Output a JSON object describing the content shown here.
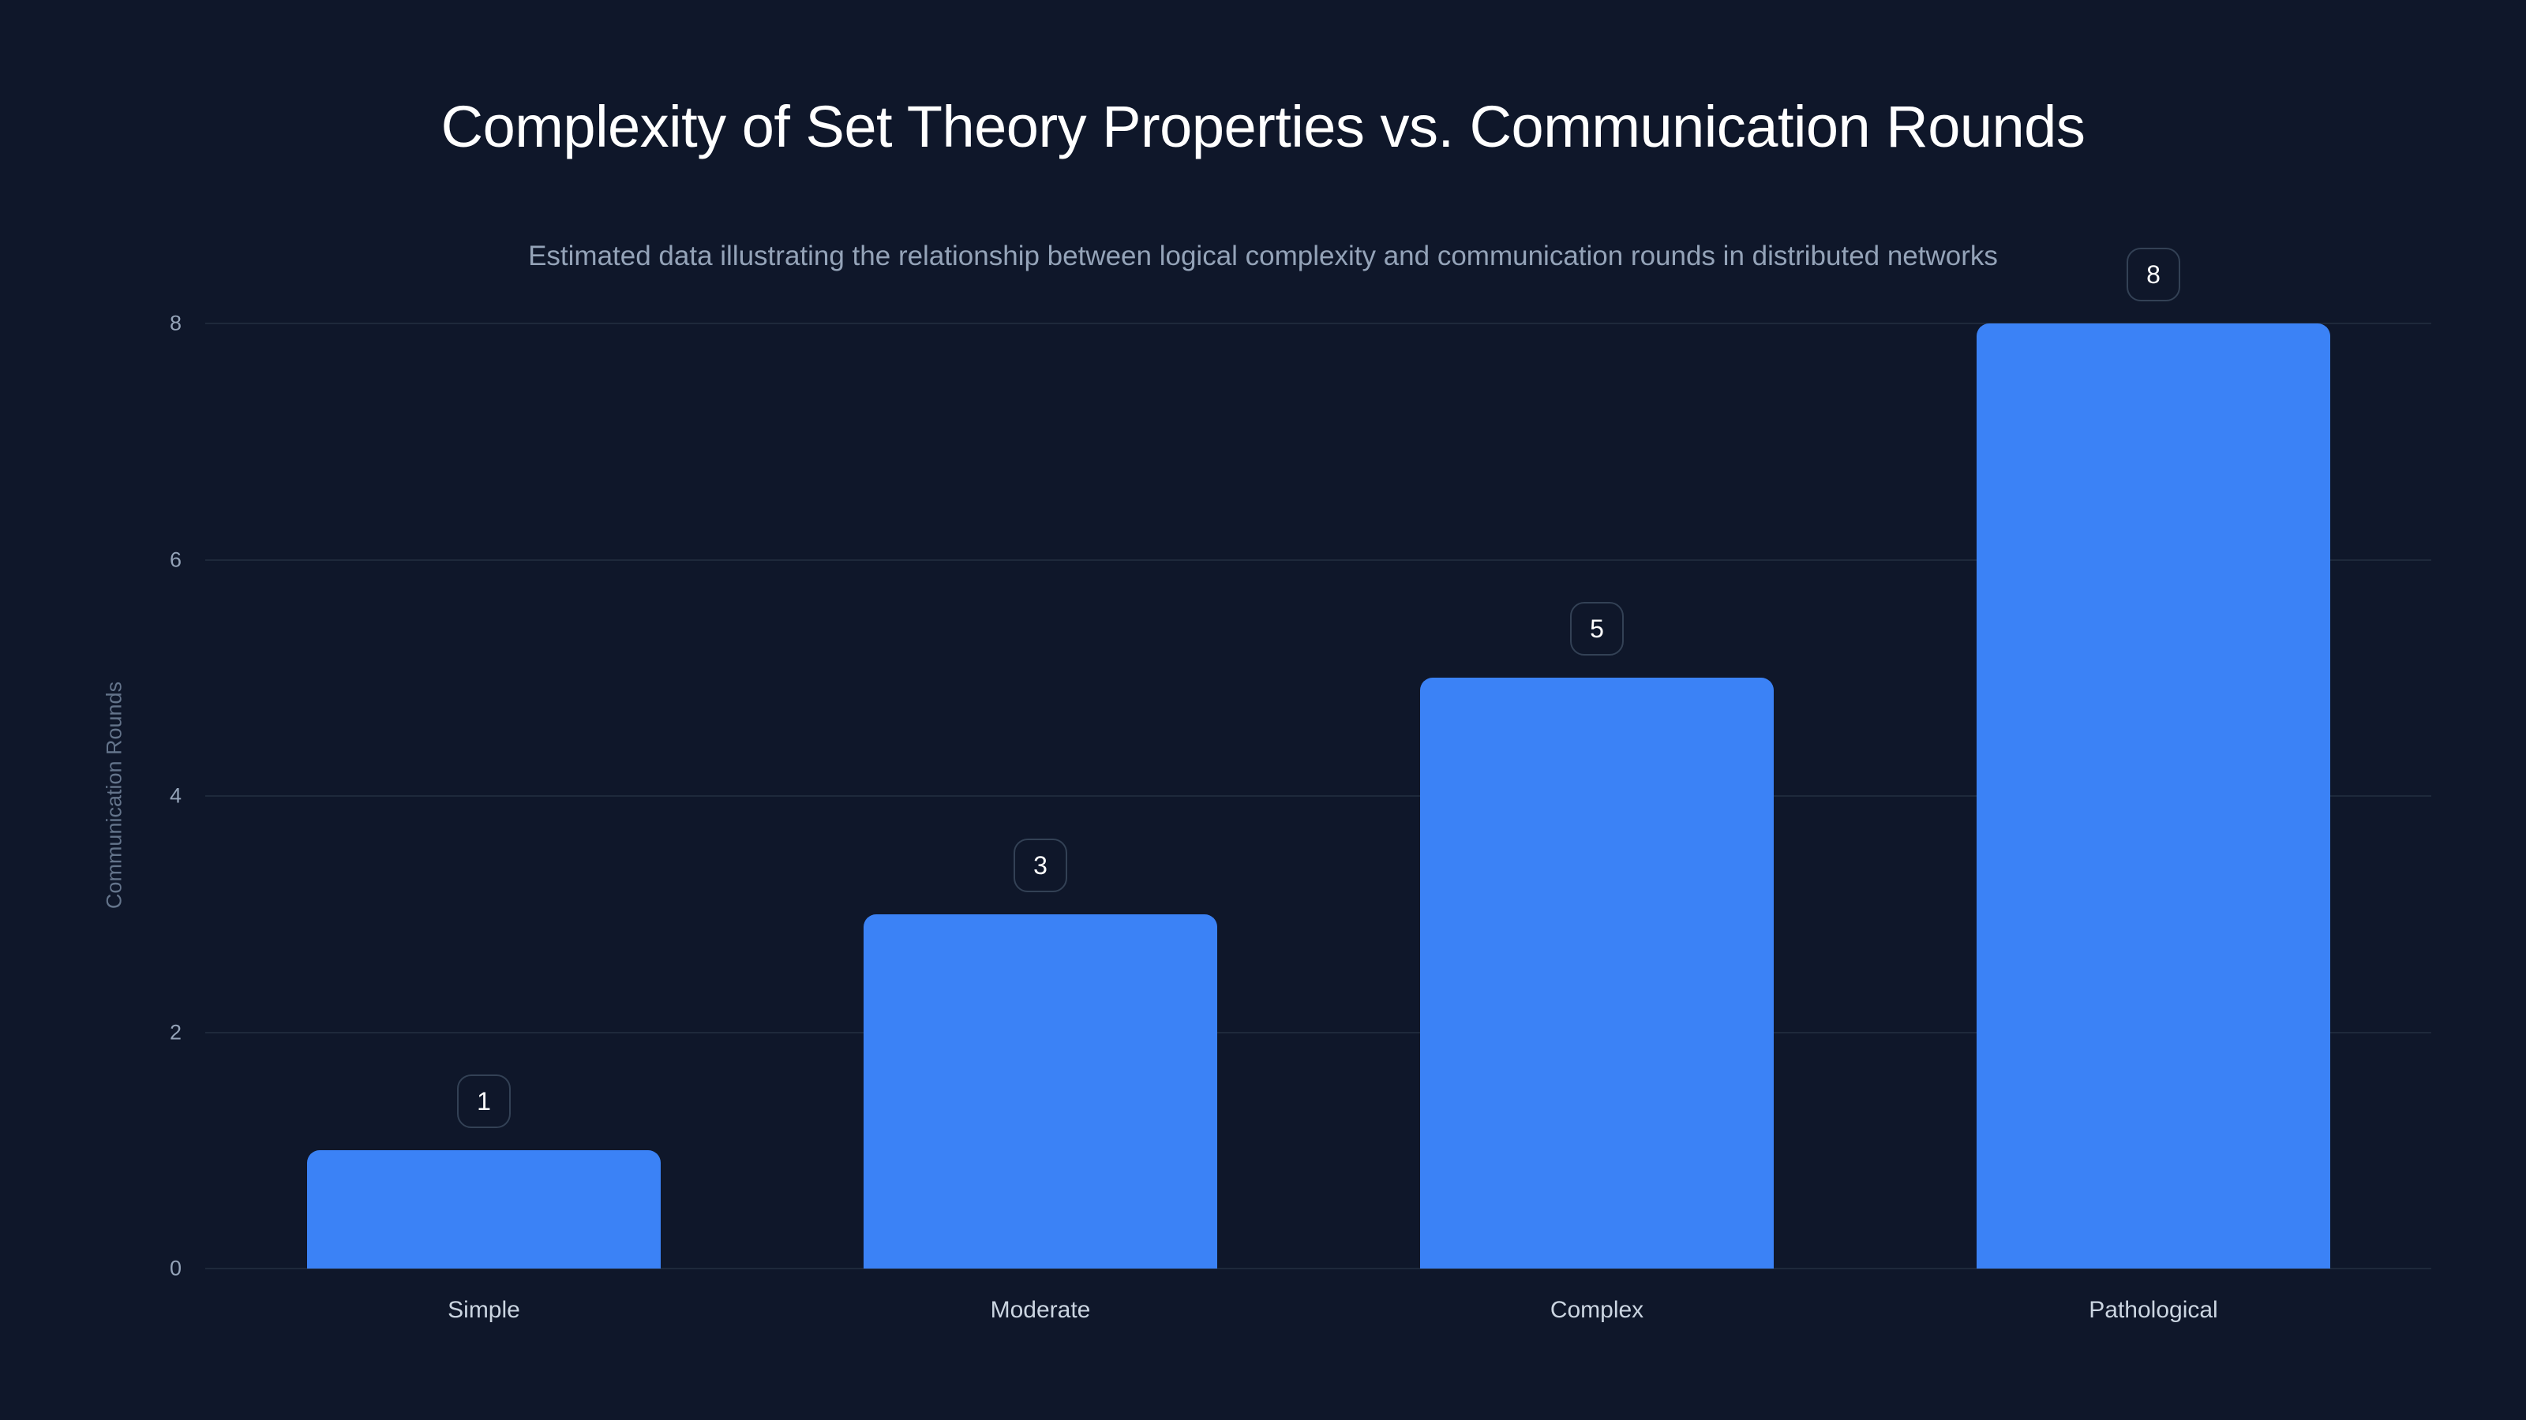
{
  "header": {
    "title": "Complexity of Set Theory Properties vs. Communication Rounds",
    "subtitle": "Estimated data illustrating the relationship between logical complexity and communication rounds in distributed networks"
  },
  "axes": {
    "ylabel": "Communication Rounds",
    "yticks": [
      "0",
      "2",
      "4",
      "6",
      "8"
    ]
  },
  "colors": {
    "background": "#0f172a",
    "bar": "#3b82f6",
    "grid": "#1e293b"
  },
  "bars": [
    {
      "category": "Simple",
      "value": 1,
      "label": "1"
    },
    {
      "category": "Moderate",
      "value": 3,
      "label": "3"
    },
    {
      "category": "Complex",
      "value": 5,
      "label": "5"
    },
    {
      "category": "Pathological",
      "value": 8,
      "label": "8"
    }
  ],
  "chart_data": {
    "type": "bar",
    "title": "Complexity of Set Theory Properties vs. Communication Rounds",
    "subtitle": "Estimated data illustrating the relationship between logical complexity and communication rounds in distributed networks",
    "categories": [
      "Simple",
      "Moderate",
      "Complex",
      "Pathological"
    ],
    "values": [
      1,
      3,
      5,
      8
    ],
    "xlabel": "",
    "ylabel": "Communication Rounds",
    "ylim": [
      0,
      8
    ],
    "yticks": [
      0,
      2,
      4,
      6,
      8
    ],
    "grid": true,
    "legend": null,
    "data_labels": true
  }
}
